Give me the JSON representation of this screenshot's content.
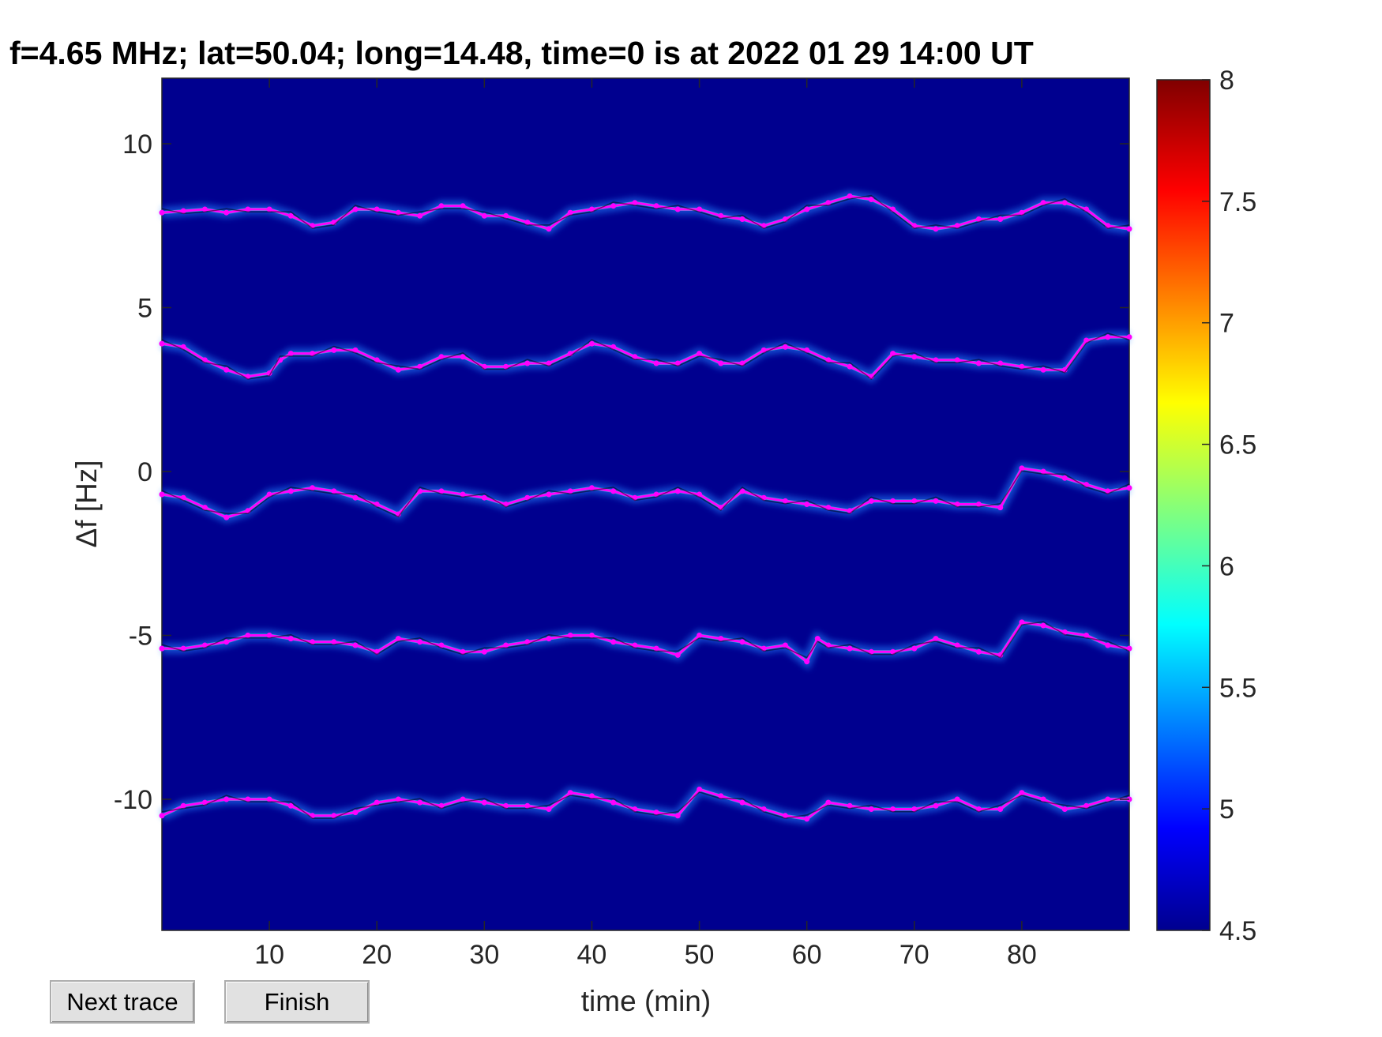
{
  "buttons": {
    "next_trace_label": "Next trace",
    "finish_label": "Finish"
  },
  "colors": {
    "background_level": "#00008f",
    "trace_line": "#ff00ff",
    "raw_line": "#000000",
    "colormap": "jet"
  },
  "chart_data": {
    "type": "heatmap",
    "title": "f=4.65 MHz;  lat=50.04; long=14.48, time=0 is at 2022 01 29 14:00 UT",
    "xlabel": "time (min)",
    "ylabel": "Δf [Hz]",
    "xlim": [
      0,
      90
    ],
    "ylim": [
      -14,
      12
    ],
    "xticks": [
      "10",
      "20",
      "30",
      "40",
      "50",
      "60",
      "70",
      "80"
    ],
    "xtick_values": [
      10,
      20,
      30,
      40,
      50,
      60,
      70,
      80
    ],
    "yticks": [
      "10",
      "5",
      "0",
      "-5",
      "-10"
    ],
    "ytick_values": [
      10,
      5,
      0,
      -5,
      -10
    ],
    "colorbar": {
      "min": 4.5,
      "max": 8,
      "ticks": [
        "8",
        "7.5",
        "7",
        "6.5",
        "6",
        "5.5",
        "5",
        "4.5"
      ],
      "tick_values": [
        8,
        7.5,
        7,
        6.5,
        6,
        5.5,
        5,
        4.5
      ],
      "colormap": "jet"
    },
    "grid": false,
    "series": [
      {
        "x": [
          0,
          2,
          4,
          6,
          8,
          10,
          12,
          14,
          16,
          18,
          20,
          22,
          24,
          26,
          28,
          30,
          32,
          34,
          36,
          38,
          40,
          42,
          44,
          46,
          48,
          50,
          52,
          54,
          56,
          58,
          60,
          62,
          64,
          66,
          68,
          70,
          72,
          74,
          76,
          78,
          80,
          82,
          84,
          86,
          88,
          90
        ],
        "y": [
          7.9,
          7.95,
          8.0,
          7.9,
          8.0,
          8.0,
          7.8,
          7.5,
          7.6,
          8.0,
          8.0,
          7.9,
          7.8,
          8.1,
          8.1,
          7.8,
          7.8,
          7.6,
          7.4,
          7.9,
          8.0,
          8.1,
          8.2,
          8.1,
          8.0,
          8.0,
          7.8,
          7.7,
          7.5,
          7.7,
          8.0,
          8.2,
          8.4,
          8.3,
          8.0,
          7.5,
          7.4,
          7.5,
          7.7,
          7.7,
          7.9,
          8.2,
          8.2,
          8.0,
          7.5,
          7.4
        ]
      },
      {
        "x": [
          0,
          2,
          4,
          6,
          8,
          10,
          11,
          12,
          14,
          16,
          18,
          20,
          22,
          24,
          26,
          28,
          30,
          32,
          34,
          36,
          38,
          40,
          42,
          44,
          46,
          48,
          50,
          52,
          54,
          56,
          58,
          60,
          62,
          64,
          66,
          68,
          70,
          72,
          74,
          76,
          78,
          80,
          82,
          84,
          86,
          88,
          90
        ],
        "y": [
          3.9,
          3.8,
          3.4,
          3.1,
          2.9,
          3.0,
          3.4,
          3.6,
          3.6,
          3.7,
          3.7,
          3.4,
          3.1,
          3.2,
          3.5,
          3.5,
          3.2,
          3.2,
          3.3,
          3.3,
          3.6,
          3.9,
          3.8,
          3.5,
          3.3,
          3.3,
          3.6,
          3.3,
          3.3,
          3.7,
          3.8,
          3.7,
          3.4,
          3.2,
          2.9,
          3.6,
          3.5,
          3.4,
          3.4,
          3.3,
          3.3,
          3.2,
          3.1,
          3.1,
          4.0,
          4.1,
          4.1
        ]
      },
      {
        "x": [
          0,
          2,
          4,
          6,
          8,
          10,
          12,
          14,
          16,
          18,
          20,
          22,
          24,
          26,
          28,
          30,
          32,
          34,
          36,
          38,
          40,
          42,
          44,
          46,
          48,
          50,
          52,
          54,
          56,
          58,
          60,
          62,
          64,
          66,
          68,
          70,
          72,
          74,
          76,
          78,
          80,
          82,
          84,
          86,
          88,
          90
        ],
        "y": [
          -0.7,
          -0.8,
          -1.1,
          -1.4,
          -1.2,
          -0.7,
          -0.6,
          -0.5,
          -0.6,
          -0.8,
          -1.0,
          -1.3,
          -0.6,
          -0.6,
          -0.7,
          -0.8,
          -1.0,
          -0.8,
          -0.7,
          -0.6,
          -0.5,
          -0.6,
          -0.8,
          -0.7,
          -0.6,
          -0.7,
          -1.1,
          -0.6,
          -0.8,
          -0.9,
          -1.0,
          -1.1,
          -1.2,
          -0.9,
          -0.9,
          -0.9,
          -0.9,
          -1.0,
          -1.0,
          -1.1,
          0.1,
          0.0,
          -0.2,
          -0.4,
          -0.6,
          -0.5
        ]
      },
      {
        "x": [
          0,
          2,
          4,
          6,
          8,
          10,
          12,
          14,
          16,
          18,
          20,
          22,
          24,
          26,
          28,
          30,
          32,
          34,
          36,
          38,
          40,
          42,
          44,
          46,
          48,
          50,
          52,
          54,
          56,
          58,
          60,
          61,
          62,
          64,
          66,
          68,
          70,
          72,
          74,
          76,
          78,
          80,
          82,
          84,
          86,
          88,
          90
        ],
        "y": [
          -5.4,
          -5.4,
          -5.3,
          -5.2,
          -5.0,
          -5.0,
          -5.1,
          -5.2,
          -5.2,
          -5.3,
          -5.5,
          -5.1,
          -5.2,
          -5.3,
          -5.5,
          -5.5,
          -5.3,
          -5.2,
          -5.1,
          -5.0,
          -5.0,
          -5.2,
          -5.3,
          -5.4,
          -5.6,
          -5.0,
          -5.1,
          -5.2,
          -5.4,
          -5.3,
          -5.8,
          -5.1,
          -5.3,
          -5.4,
          -5.5,
          -5.5,
          -5.4,
          -5.1,
          -5.3,
          -5.5,
          -5.6,
          -4.6,
          -4.7,
          -4.9,
          -5.0,
          -5.3,
          -5.4
        ]
      },
      {
        "x": [
          0,
          2,
          4,
          6,
          8,
          10,
          12,
          14,
          16,
          18,
          20,
          22,
          24,
          26,
          28,
          30,
          32,
          34,
          36,
          38,
          40,
          42,
          44,
          46,
          48,
          50,
          52,
          54,
          56,
          58,
          60,
          62,
          64,
          66,
          68,
          70,
          72,
          74,
          76,
          78,
          80,
          82,
          84,
          86,
          88,
          90
        ],
        "y": [
          -10.5,
          -10.2,
          -10.1,
          -10.0,
          -10.0,
          -10.0,
          -10.2,
          -10.5,
          -10.5,
          -10.4,
          -10.1,
          -10.0,
          -10.1,
          -10.2,
          -10.0,
          -10.1,
          -10.2,
          -10.2,
          -10.3,
          -9.8,
          -9.9,
          -10.1,
          -10.3,
          -10.4,
          -10.5,
          -9.7,
          -9.9,
          -10.1,
          -10.3,
          -10.5,
          -10.6,
          -10.1,
          -10.2,
          -10.3,
          -10.3,
          -10.3,
          -10.2,
          -10.0,
          -10.3,
          -10.3,
          -9.8,
          -10.0,
          -10.3,
          -10.2,
          -10.0,
          -10.0
        ]
      }
    ]
  }
}
